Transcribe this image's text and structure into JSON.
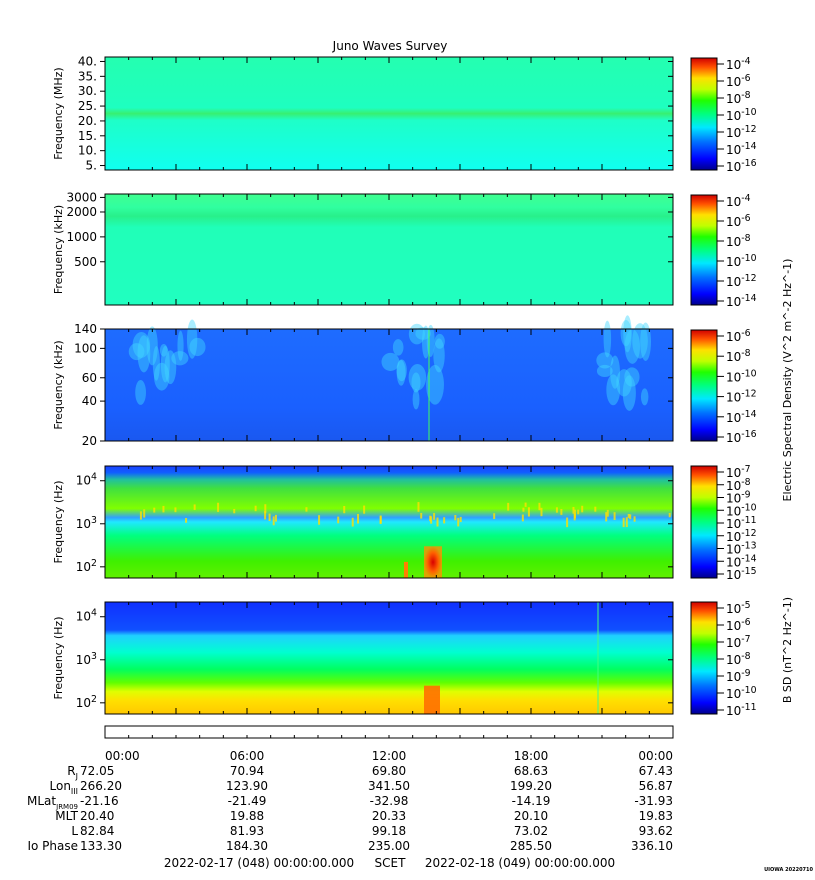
{
  "title": "Juno Waves Survey",
  "chart_data": [
    {
      "type": "heatmap",
      "name": "panel-1",
      "ylabel": "Frequency (MHz)",
      "yticks": [
        "40.",
        "35.",
        "30.",
        "25.",
        "20.",
        "15.",
        "10.",
        "5."
      ],
      "yvalues": [
        40,
        35,
        30,
        25,
        20,
        15,
        10,
        5
      ],
      "ylim": [
        3.5,
        41.5
      ],
      "yscale": "linear",
      "colorbar_ticks": [
        "10^-4",
        "10^-6",
        "10^-8",
        "10^-10",
        "10^-12",
        "10^-14",
        "10^-16"
      ],
      "features": [
        "uniform background ~10^-12",
        "bright band near 21 MHz"
      ]
    },
    {
      "type": "heatmap",
      "name": "panel-2",
      "ylabel": "Frequency (kHz)",
      "yticks": [
        "3000",
        "2000",
        "1000",
        "500"
      ],
      "yvalues": [
        3000,
        2000,
        1000,
        500
      ],
      "ylim": [
        150,
        3300
      ],
      "yscale": "log",
      "colorbar_ticks": [
        "10^-4",
        "10^-6",
        "10^-8",
        "10^-10",
        "10^-12",
        "10^-14"
      ],
      "features": [
        "band near 2000 kHz",
        "faint arc emission"
      ]
    },
    {
      "type": "heatmap",
      "name": "panel-3",
      "ylabel": "Frequency (kHz)",
      "yticks": [
        "140",
        "100",
        "60",
        "40",
        "20"
      ],
      "yvalues": [
        140,
        100,
        60,
        40,
        20
      ],
      "ylim": [
        20,
        140
      ],
      "yscale": "log",
      "colorbar_ticks": [
        "10^-6",
        "10^-8",
        "10^-10",
        "10^-12",
        "10^-14",
        "10^-16"
      ],
      "features": [
        "emission ~01:00-03:00",
        "emission ~12:00-14:00",
        "emission ~21:00-23:00"
      ]
    },
    {
      "type": "heatmap",
      "name": "panel-4",
      "ylabel": "Frequency (Hz)",
      "yticks": [
        "10^4",
        "10^3",
        "10^2"
      ],
      "yvalues": [
        10000,
        1000,
        100
      ],
      "ylim": [
        55,
        22000
      ],
      "yscale": "log",
      "colorbar_ticks": [
        "10^-7",
        "10^-8",
        "10^-9",
        "10^-10",
        "10^-11",
        "10^-12",
        "10^-13",
        "10^-14",
        "10^-15"
      ],
      "colorbar_label": "Electric Spectral Density (V^2 m^-2 Hz^-1)",
      "features": [
        "green band 1000-10000 Hz",
        "intense burst 13:30-14:15 below 300 Hz"
      ]
    },
    {
      "type": "heatmap",
      "name": "panel-5",
      "ylabel": "Frequency (Hz)",
      "yticks": [
        "10^4",
        "10^3",
        "10^2"
      ],
      "yvalues": [
        10000,
        1000,
        100
      ],
      "ylim": [
        55,
        22000
      ],
      "yscale": "log",
      "colorbar_ticks": [
        "10^-5",
        "10^-6",
        "10^-7",
        "10^-8",
        "10^-9",
        "10^-10",
        "10^-11"
      ],
      "colorbar_label": "B SD (nT^2 Hz^-1)",
      "features": [
        "strong low-frequency emission below 200 Hz",
        "burst 13:30-14:15"
      ]
    }
  ],
  "x_time_labels": [
    "00:00",
    "06:00",
    "12:00",
    "18:00",
    "00:00"
  ],
  "ephemeris": [
    {
      "label": "R",
      "sub": "J",
      "values": [
        "72.05",
        "70.94",
        "69.80",
        "68.63",
        "67.43"
      ]
    },
    {
      "label": "Lon",
      "sub": "III",
      "values": [
        "266.20",
        "123.90",
        "341.50",
        "199.20",
        "56.87"
      ]
    },
    {
      "label": "MLat",
      "sub": "JRM09",
      "values": [
        "-21.16",
        "-21.49",
        "-32.98",
        "-14.19",
        "-31.93"
      ]
    },
    {
      "label": "MLT",
      "sub": "",
      "values": [
        "20.40",
        "19.88",
        "20.33",
        "20.10",
        "19.83"
      ]
    },
    {
      "label": "L",
      "sub": "",
      "values": [
        "82.84",
        "81.93",
        "99.18",
        "73.02",
        "93.62"
      ]
    },
    {
      "label": "Io Phase",
      "sub": "",
      "values": [
        "133.30",
        "184.30",
        "235.00",
        "285.50",
        "336.10"
      ]
    }
  ],
  "footer": {
    "start": "2022-02-17 (048) 00:00:00.000",
    "scet": "SCET",
    "end": "2022-02-18 (049) 00:00:00.000"
  },
  "stamp": "UIOWA 20220710",
  "colors": {
    "colormap": [
      "#0000a0",
      "#0030ff",
      "#00c8ff",
      "#00ffc8",
      "#00f000",
      "#c8ff00",
      "#ffe000",
      "#ff6000",
      "#d00000"
    ]
  }
}
